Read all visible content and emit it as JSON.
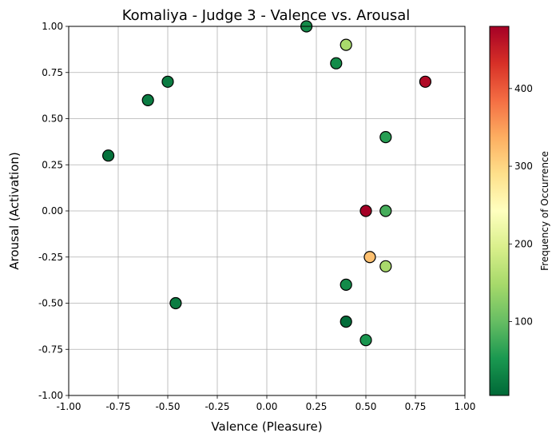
{
  "chart_data": {
    "type": "scatter",
    "title": "Komaliya - Judge 3 - Valence vs. Arousal",
    "xlabel": "Valence (Pleasure)",
    "ylabel": "Arousal (Activation)",
    "xlim": [
      -1.0,
      1.0
    ],
    "ylim": [
      -1.0,
      1.0
    ],
    "x_ticks": [
      "-1.00",
      "-0.75",
      "-0.50",
      "-0.25",
      "0.00",
      "0.25",
      "0.50",
      "0.75",
      "1.00"
    ],
    "y_ticks": [
      "-1.00",
      "-0.75",
      "-0.50",
      "-0.25",
      "0.00",
      "0.25",
      "0.50",
      "0.75",
      "1.00"
    ],
    "grid": true,
    "colormap": "RdYlGn_r",
    "colorbar": {
      "label": "Frequency of Occurrence",
      "range": [
        5,
        480
      ],
      "ticks": [
        "100",
        "200",
        "300",
        "400"
      ],
      "tick_values": [
        100,
        200,
        300,
        400
      ]
    },
    "points": [
      {
        "x": 0.2,
        "y": 1.0,
        "freq": 40
      },
      {
        "x": 0.4,
        "y": 0.9,
        "freq": 150
      },
      {
        "x": 0.35,
        "y": 0.8,
        "freq": 40
      },
      {
        "x": -0.5,
        "y": 0.7,
        "freq": 25
      },
      {
        "x": 0.8,
        "y": 0.7,
        "freq": 470
      },
      {
        "x": -0.6,
        "y": 0.6,
        "freq": 25
      },
      {
        "x": 0.6,
        "y": 0.4,
        "freq": 60
      },
      {
        "x": -0.8,
        "y": 0.3,
        "freq": 15
      },
      {
        "x": 0.5,
        "y": 0.0,
        "freq": 480
      },
      {
        "x": 0.6,
        "y": 0.0,
        "freq": 80
      },
      {
        "x": 0.52,
        "y": -0.25,
        "freq": 320
      },
      {
        "x": 0.6,
        "y": -0.3,
        "freq": 150
      },
      {
        "x": 0.4,
        "y": -0.4,
        "freq": 40
      },
      {
        "x": -0.46,
        "y": -0.5,
        "freq": 25
      },
      {
        "x": 0.4,
        "y": -0.6,
        "freq": 10
      },
      {
        "x": 0.5,
        "y": -0.7,
        "freq": 50
      }
    ]
  }
}
